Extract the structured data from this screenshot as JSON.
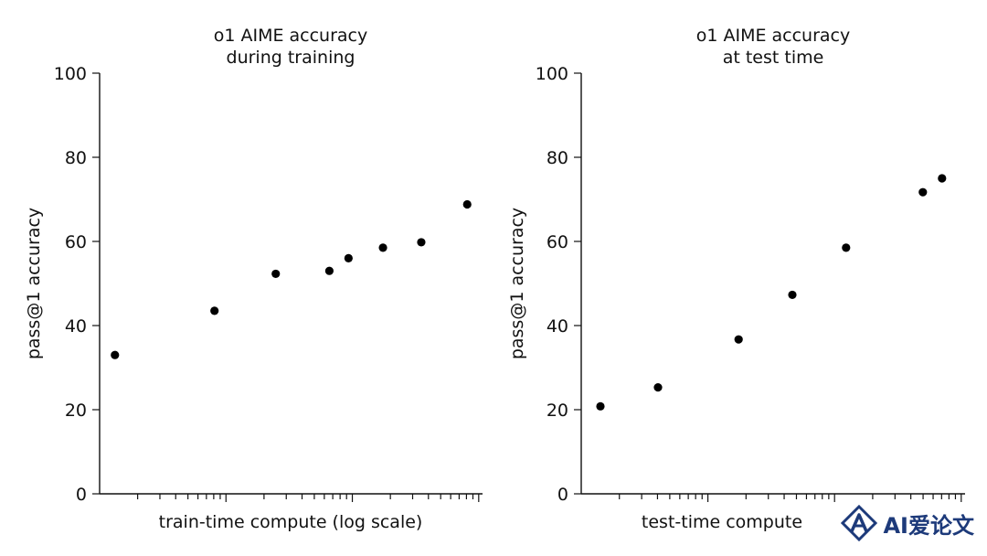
{
  "chart_data": [
    {
      "type": "scatter",
      "title_lines": [
        "o1 AIME accuracy",
        "during training"
      ],
      "xlabel": "train-time compute (log scale)",
      "ylabel": "pass@1 accuracy",
      "x_scale": "log",
      "ylim": [
        0,
        100
      ],
      "yticks": [
        "0",
        "20",
        "40",
        "60",
        "80",
        "100"
      ],
      "grid": false,
      "point_color": "#000000",
      "points": [
        {
          "x_position": 0.04,
          "y": 33
        },
        {
          "x_position": 0.3,
          "y": 43.5
        },
        {
          "x_position": 0.46,
          "y": 52.3
        },
        {
          "x_position": 0.6,
          "y": 53
        },
        {
          "x_position": 0.65,
          "y": 56
        },
        {
          "x_position": 0.74,
          "y": 58.5
        },
        {
          "x_position": 0.84,
          "y": 59.8
        },
        {
          "x_position": 0.96,
          "y": 68.8
        }
      ]
    },
    {
      "type": "scatter",
      "title_lines": [
        "o1 AIME accuracy",
        "at test time"
      ],
      "xlabel": "test-time compute",
      "ylabel": "pass@1 accuracy",
      "x_scale": "log",
      "ylim": [
        0,
        100
      ],
      "yticks": [
        "0",
        "20",
        "40",
        "60",
        "80",
        "100"
      ],
      "grid": false,
      "point_color": "#000000",
      "points": [
        {
          "x_position": 0.05,
          "y": 20.8
        },
        {
          "x_position": 0.2,
          "y": 25.3
        },
        {
          "x_position": 0.41,
          "y": 36.7
        },
        {
          "x_position": 0.55,
          "y": 47.3
        },
        {
          "x_position": 0.69,
          "y": 58.5
        },
        {
          "x_position": 0.89,
          "y": 71.7
        },
        {
          "x_position": 0.94,
          "y": 75
        }
      ]
    }
  ],
  "watermark": {
    "text": "AI爱论文"
  }
}
